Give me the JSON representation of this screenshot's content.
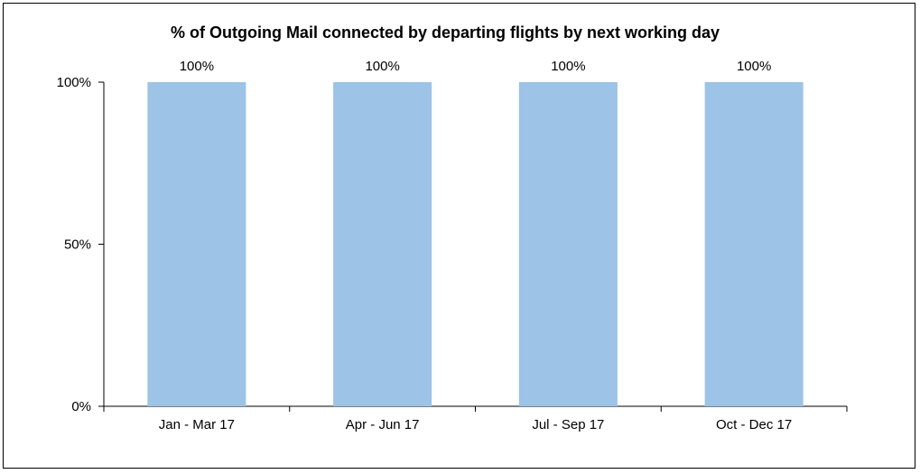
{
  "chart_data": {
    "type": "bar",
    "title": "% of Outgoing Mail connected by departing flights by next working day",
    "xlabel": "",
    "ylabel": "",
    "categories": [
      "Jan - Mar 17",
      "Apr - Jun 17",
      "Jul - Sep 17",
      "Oct - Dec 17"
    ],
    "values": [
      100,
      100,
      100,
      100
    ],
    "data_labels": [
      "100%",
      "100%",
      "100%",
      "100%"
    ],
    "ylim": [
      0,
      100
    ],
    "yticks": [
      0,
      50,
      100
    ],
    "ytick_labels": [
      "0%",
      "50%",
      "100%"
    ],
    "grid": false,
    "legend": "none",
    "bar_color": "#9dc3e6"
  }
}
